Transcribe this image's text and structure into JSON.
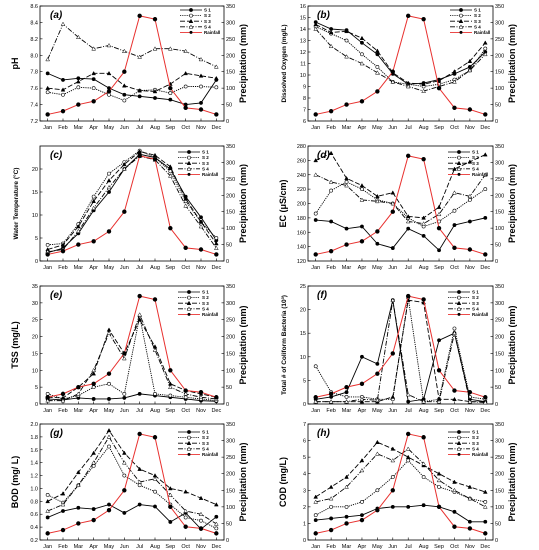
{
  "months": [
    "Jan",
    "Feb",
    "Mar",
    "Apr",
    "May",
    "Jun",
    "Jul",
    "Aug",
    "Sep",
    "Oct",
    "Nov",
    "Dec"
  ],
  "legend": [
    "S 1",
    "S 2",
    "S 3",
    "S 4",
    "Rainfall"
  ],
  "colors": {
    "rainfall": "#e8312f",
    "series": "#000000"
  },
  "right_axis": {
    "label": "Precipitation (mm)",
    "ticks": [
      0,
      50,
      100,
      150,
      200,
      250,
      300,
      350
    ],
    "lim": [
      0,
      350
    ]
  },
  "rainfall": [
    20,
    30,
    50,
    60,
    90,
    150,
    320,
    310,
    100,
    40,
    35,
    20
  ],
  "chart_data": [
    {
      "type": "line",
      "panel": "(a)",
      "ylabel": "pH",
      "ylim": [
        7.2,
        8.6
      ],
      "yticks": [
        "7.2",
        "7.4",
        "7.6",
        "7.8",
        "8.0",
        "8.2",
        "8.4",
        "8.6"
      ],
      "series": [
        {
          "name": "S 1",
          "values": [
            7.78,
            7.7,
            7.72,
            7.71,
            7.6,
            7.52,
            7.5,
            7.48,
            7.46,
            7.4,
            7.42,
            7.7
          ]
        },
        {
          "name": "S 2",
          "values": [
            7.55,
            7.52,
            7.61,
            7.6,
            7.52,
            7.45,
            7.57,
            7.58,
            7.54,
            7.62,
            7.62,
            7.61
          ]
        },
        {
          "name": "S 3",
          "values": [
            7.6,
            7.58,
            7.68,
            7.78,
            7.78,
            7.63,
            7.57,
            7.56,
            7.65,
            7.78,
            7.75,
            7.72
          ]
        },
        {
          "name": "S 4",
          "values": [
            7.95,
            8.38,
            8.22,
            8.08,
            8.12,
            8.05,
            7.98,
            8.08,
            8.08,
            8.05,
            7.95,
            7.86
          ]
        }
      ]
    },
    {
      "type": "line",
      "panel": "(b)",
      "ylabel": "Dissolved Oxygen (mg/L)",
      "ylim": [
        6,
        16
      ],
      "yticks": [
        "6",
        "7",
        "8",
        "9",
        "10",
        "11",
        "12",
        "13",
        "14",
        "15",
        "16"
      ],
      "series": [
        {
          "name": "S 1",
          "values": [
            14.6,
            14.0,
            13.9,
            12.8,
            11.8,
            10.1,
            9.2,
            9.3,
            9.6,
            10.1,
            10.7,
            12.0
          ]
        },
        {
          "name": "S 2",
          "values": [
            14.2,
            13.6,
            13.0,
            11.8,
            10.7,
            9.4,
            9.2,
            9.0,
            9.2,
            9.6,
            10.4,
            12.3
          ]
        },
        {
          "name": "S 3",
          "values": [
            14.4,
            13.7,
            13.8,
            13.2,
            12.1,
            10.2,
            9.3,
            9.2,
            9.5,
            10.3,
            11.2,
            12.8
          ]
        },
        {
          "name": "S 4",
          "values": [
            14.0,
            12.5,
            11.6,
            11.0,
            10.2,
            9.4,
            9.0,
            8.6,
            9.0,
            9.4,
            10.4,
            11.8
          ]
        }
      ]
    },
    {
      "type": "line",
      "panel": "(c)",
      "ylabel": "Water Temperature (°C)",
      "ylim": [
        0,
        25
      ],
      "yticks": [
        "0",
        "5",
        "10",
        "15",
        "20"
      ],
      "series": [
        {
          "name": "S 1",
          "values": [
            1.8,
            2.8,
            6.0,
            11.0,
            15.0,
            20.0,
            23.2,
            22.5,
            20.0,
            14.0,
            9.5,
            4.5
          ]
        },
        {
          "name": "S 2",
          "values": [
            3.5,
            3.8,
            8.0,
            14.0,
            19.0,
            21.5,
            24.0,
            22.5,
            19.5,
            13.0,
            8.5,
            5.0
          ]
        },
        {
          "name": "S 3",
          "values": [
            2.5,
            3.5,
            7.5,
            13.0,
            17.5,
            21.0,
            23.8,
            23.0,
            20.5,
            13.5,
            8.5,
            3.8
          ]
        },
        {
          "name": "S 4",
          "values": [
            2.0,
            2.5,
            6.5,
            11.5,
            16.0,
            20.0,
            22.8,
            22.0,
            18.5,
            12.0,
            7.5,
            2.8
          ]
        }
      ]
    },
    {
      "type": "line",
      "panel": "(d)",
      "ylabel": "EC (μS/cm)",
      "ylim": [
        120,
        280
      ],
      "yticks": [
        "120",
        "140",
        "160",
        "180",
        "200",
        "220",
        "240",
        "260",
        "280"
      ],
      "series": [
        {
          "name": "S 1",
          "values": [
            177,
            175,
            165,
            168,
            144,
            138,
            165,
            155,
            135,
            170,
            175,
            180
          ]
        },
        {
          "name": "S 2",
          "values": [
            186,
            218,
            230,
            220,
            205,
            200,
            180,
            168,
            175,
            190,
            205,
            220
          ]
        },
        {
          "name": "S 3",
          "values": [
            260,
            270,
            235,
            225,
            210,
            215,
            182,
            180,
            195,
            248,
            258,
            268
          ]
        },
        {
          "name": "S 4",
          "values": [
            240,
            230,
            225,
            205,
            203,
            200,
            175,
            172,
            185,
            215,
            210,
            240
          ]
        }
      ]
    },
    {
      "type": "line",
      "panel": "(e)",
      "ylabel": "TSS (mg/L)",
      "ylim": [
        0,
        35
      ],
      "yticks": [
        "0",
        "5",
        "10",
        "15",
        "20",
        "25",
        "30",
        "35"
      ],
      "series": [
        {
          "name": "S 1",
          "values": [
            1.5,
            1.2,
            1.8,
            1.5,
            1.5,
            1.8,
            3.0,
            2.5,
            2.0,
            1.5,
            1.0,
            0.8
          ]
        },
        {
          "name": "S 2",
          "values": [
            3.0,
            1.5,
            2.5,
            5.0,
            6.0,
            3.0,
            26.0,
            3.0,
            2.5,
            2.0,
            1.5,
            1.0
          ]
        },
        {
          "name": "S 3",
          "values": [
            2.0,
            1.8,
            5.0,
            9.0,
            22.0,
            15.0,
            25.0,
            17.0,
            6.0,
            4.0,
            3.0,
            2.0
          ]
        },
        {
          "name": "S 4",
          "values": [
            1.0,
            1.0,
            3.0,
            10.0,
            21.0,
            13.5,
            26.5,
            16.0,
            5.0,
            3.0,
            2.0,
            1.5
          ]
        }
      ]
    },
    {
      "type": "line",
      "panel": "(f)",
      "ylabel": "Total # of Coliform Bacteria (10³)",
      "ylim": [
        0,
        25
      ],
      "yticks": [
        "0",
        "5",
        "10",
        "15",
        "20",
        "25"
      ],
      "series": [
        {
          "name": "S 1",
          "values": [
            1.0,
            1.5,
            2.5,
            10.0,
            8.5,
            22.0,
            0.5,
            1.0,
            13.5,
            15.0,
            1.0,
            0.5
          ]
        },
        {
          "name": "S 2",
          "values": [
            8.0,
            2.5,
            1.5,
            1.5,
            1.0,
            1.0,
            22.5,
            0.5,
            1.0,
            16.0,
            1.5,
            1.0
          ]
        },
        {
          "name": "S 3",
          "values": [
            0.5,
            0.5,
            0.5,
            0.5,
            0.5,
            1.5,
            22.0,
            21.5,
            1.0,
            1.0,
            0.5,
            0.5
          ]
        },
        {
          "name": "S 4",
          "values": [
            0.5,
            0.5,
            0.5,
            1.0,
            0.8,
            22.0,
            2.0,
            0.5,
            0.5,
            15.0,
            0.5,
            0.3
          ]
        }
      ]
    },
    {
      "type": "line",
      "panel": "(g)",
      "ylabel": "BOD (mg/ L)",
      "ylim": [
        0.2,
        2.0
      ],
      "yticks": [
        "0.2",
        "0.4",
        "0.6",
        "0.8",
        "1.0",
        "1.2",
        "1.4",
        "1.6",
        "1.8",
        "2.0"
      ],
      "series": [
        {
          "name": "S 1",
          "values": [
            0.55,
            0.65,
            0.7,
            0.68,
            0.75,
            0.62,
            0.75,
            0.72,
            0.48,
            0.62,
            0.37,
            0.56
          ]
        },
        {
          "name": "S 2",
          "values": [
            0.9,
            0.78,
            1.05,
            1.35,
            1.65,
            1.2,
            1.05,
            0.95,
            0.75,
            0.55,
            0.5,
            0.38
          ]
        },
        {
          "name": "S 3",
          "values": [
            0.8,
            0.92,
            1.25,
            1.55,
            1.9,
            1.55,
            1.3,
            1.2,
            1.0,
            0.95,
            0.85,
            0.75
          ]
        },
        {
          "name": "S 4",
          "values": [
            0.65,
            0.75,
            1.05,
            1.4,
            1.8,
            1.4,
            1.1,
            1.15,
            0.9,
            0.65,
            0.6,
            0.45
          ]
        }
      ]
    },
    {
      "type": "line",
      "panel": "(h)",
      "ylabel": "COD (mg/L)",
      "ylim": [
        0,
        7
      ],
      "yticks": [
        "0",
        "1",
        "2",
        "3",
        "4",
        "5",
        "6",
        "7"
      ],
      "series": [
        {
          "name": "S 1",
          "values": [
            1.2,
            1.3,
            1.4,
            1.5,
            1.9,
            2.0,
            2.0,
            2.1,
            2.0,
            1.7,
            1.1,
            1.1
          ]
        },
        {
          "name": "S 2",
          "values": [
            1.5,
            2.0,
            2.0,
            2.3,
            3.0,
            3.8,
            4.8,
            3.8,
            3.2,
            2.9,
            2.5,
            2.3
          ]
        },
        {
          "name": "S 3",
          "values": [
            2.6,
            3.2,
            3.8,
            4.8,
            5.9,
            5.5,
            5.0,
            4.5,
            4.0,
            3.5,
            3.2,
            2.9
          ]
        },
        {
          "name": "S 4",
          "values": [
            2.3,
            2.5,
            3.2,
            4.2,
            5.2,
            4.8,
            5.5,
            4.6,
            3.6,
            3.0,
            2.5,
            2.0
          ]
        }
      ]
    }
  ]
}
